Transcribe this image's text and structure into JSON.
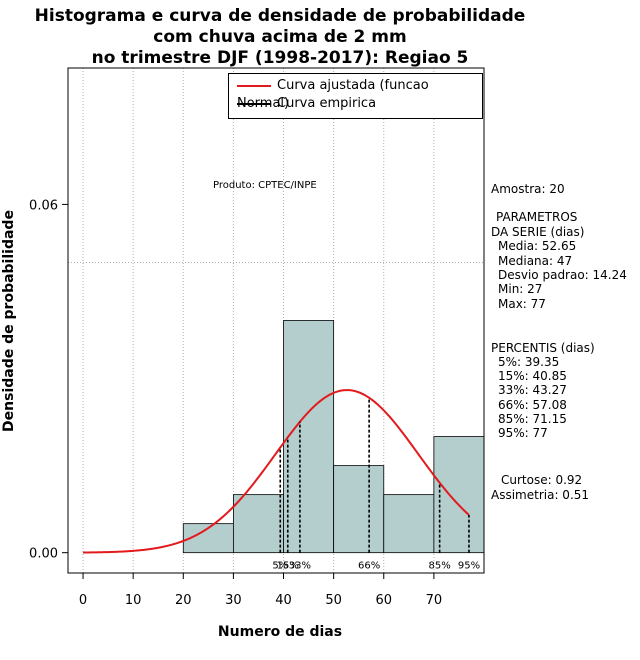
{
  "title": [
    "Histograma e curva de densidade de probabilidade",
    "com chuva acima de 2 mm",
    "no trimestre DJF (1998-2017): Regiao 5"
  ],
  "product_note": "Produto: CPTEC/INPE",
  "legend": [
    {
      "label": "Curva ajustada (funcao Normal)",
      "color": "#e31a1c"
    },
    {
      "label": "Curva empirica",
      "color": "#000000"
    }
  ],
  "stats": {
    "amostra": "Amostra: 20",
    "param_header1": "PARAMETROS",
    "param_header2": "DA SERIE (dias)",
    "media": "Media: 52.65",
    "mediana": "Mediana: 47",
    "desvio": "Desvio padrao: 14.24",
    "min": "Min: 27",
    "max": "Max: 77",
    "percentis_header": "PERCENTIS (dias)",
    "p5": "5%: 39.35",
    "p15": "15%: 40.85",
    "p33": "33%: 43.27",
    "p66": "66%: 57.08",
    "p85": "85%: 71.15",
    "p95": "95%: 77",
    "curtose": "Curtose: 0.92",
    "assimetria": "Assimetria: 0.51"
  },
  "chart_data": {
    "type": "bar",
    "title": "Histograma e curva de densidade de probabilidade com chuva acima de 2 mm no trimestre DJF (1998-2017): Regiao 5",
    "xlabel": "Numero de dias",
    "ylabel": "Densidade de probabilidade",
    "xlim": [
      -3,
      80
    ],
    "ylim": [
      -0.0035,
      0.0835
    ],
    "x_ticks": [
      0,
      10,
      20,
      30,
      40,
      50,
      60,
      70
    ],
    "y_ticks": [
      0.0,
      0.06
    ],
    "y_tick_labels": [
      "0.00",
      "0.06"
    ],
    "bins": [
      {
        "from": 20,
        "to": 30,
        "density": 0.005
      },
      {
        "from": 30,
        "to": 40,
        "density": 0.01
      },
      {
        "from": 40,
        "to": 50,
        "density": 0.04
      },
      {
        "from": 50,
        "to": 60,
        "density": 0.015
      },
      {
        "from": 60,
        "to": 70,
        "density": 0.01
      },
      {
        "from": 70,
        "to": 80,
        "density": 0.02
      }
    ],
    "bar_color": "#b4cdcd",
    "normal_fit": {
      "mean": 52.65,
      "sd": 14.24,
      "from": 0,
      "to": 77,
      "color": "#e31a1c"
    },
    "percentiles": [
      {
        "label": "5%",
        "value": 39.35
      },
      {
        "label": "15%",
        "value": 40.85
      },
      {
        "label": "33%",
        "value": 43.27
      },
      {
        "label": "66%",
        "value": 57.08
      },
      {
        "label": "85%",
        "value": 71.15
      },
      {
        "label": "95%",
        "value": 77
      }
    ],
    "grid_x": [
      0,
      10,
      20,
      30,
      40,
      50,
      60,
      70
    ],
    "grid_y": [
      0.05
    ]
  }
}
